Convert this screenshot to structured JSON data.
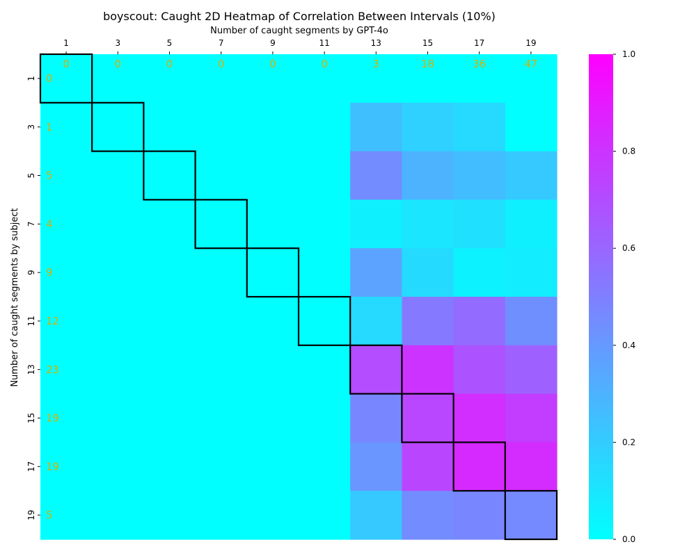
{
  "chart_data": {
    "type": "heatmap",
    "title": "boyscout: Caught 2D Heatmap of Correlation Between Intervals (10%)",
    "xlabel": "Number of caught segments by GPT-4o",
    "ylabel": "Number of caught segments by subject",
    "x_categories": [
      "1",
      "3",
      "5",
      "7",
      "9",
      "11",
      "13",
      "15",
      "17",
      "19"
    ],
    "y_categories": [
      "1",
      "3",
      "5",
      "7",
      "9",
      "11",
      "13",
      "15",
      "17",
      "19"
    ],
    "column_totals": [
      "0",
      "0",
      "0",
      "0",
      "0",
      "0",
      "3",
      "18",
      "36",
      "47"
    ],
    "row_totals": [
      "0",
      "1",
      "5",
      "4",
      "9",
      "12",
      "23",
      "19",
      "19",
      "5"
    ],
    "values": [
      [
        0,
        0,
        0,
        0,
        0,
        0,
        0.0,
        0.0,
        0.0,
        0.0
      ],
      [
        0,
        0,
        0,
        0,
        0,
        0,
        0.25,
        0.18,
        0.15,
        0.0
      ],
      [
        0,
        0,
        0,
        0,
        0,
        0,
        0.45,
        0.3,
        0.26,
        0.21
      ],
      [
        0,
        0,
        0,
        0,
        0,
        0,
        0.06,
        0.1,
        0.12,
        0.06
      ],
      [
        0,
        0,
        0,
        0,
        0,
        0,
        0.36,
        0.14,
        0.05,
        0.07
      ],
      [
        0,
        0,
        0,
        0,
        0,
        0,
        0.15,
        0.52,
        0.58,
        0.44
      ],
      [
        0,
        0,
        0,
        0,
        0,
        0,
        0.7,
        0.8,
        0.68,
        0.62
      ],
      [
        0,
        0,
        0,
        0,
        0,
        0,
        0.47,
        0.72,
        0.82,
        0.76
      ],
      [
        0,
        0,
        0,
        0,
        0,
        0,
        0.41,
        0.73,
        0.84,
        0.83
      ],
      [
        0,
        0,
        0,
        0,
        0,
        0,
        0.21,
        0.45,
        0.47,
        0.46
      ]
    ],
    "diagonal_highlight": true,
    "colormap": [
      "#00ffff",
      "#ff00ff"
    ],
    "colorbar": {
      "range": [
        0.0,
        1.0
      ],
      "ticks": [
        "0.0",
        "0.2",
        "0.4",
        "0.6",
        "0.8",
        "1.0"
      ]
    },
    "annotation_color": "#d4b106",
    "highlight_color": "#000000"
  }
}
